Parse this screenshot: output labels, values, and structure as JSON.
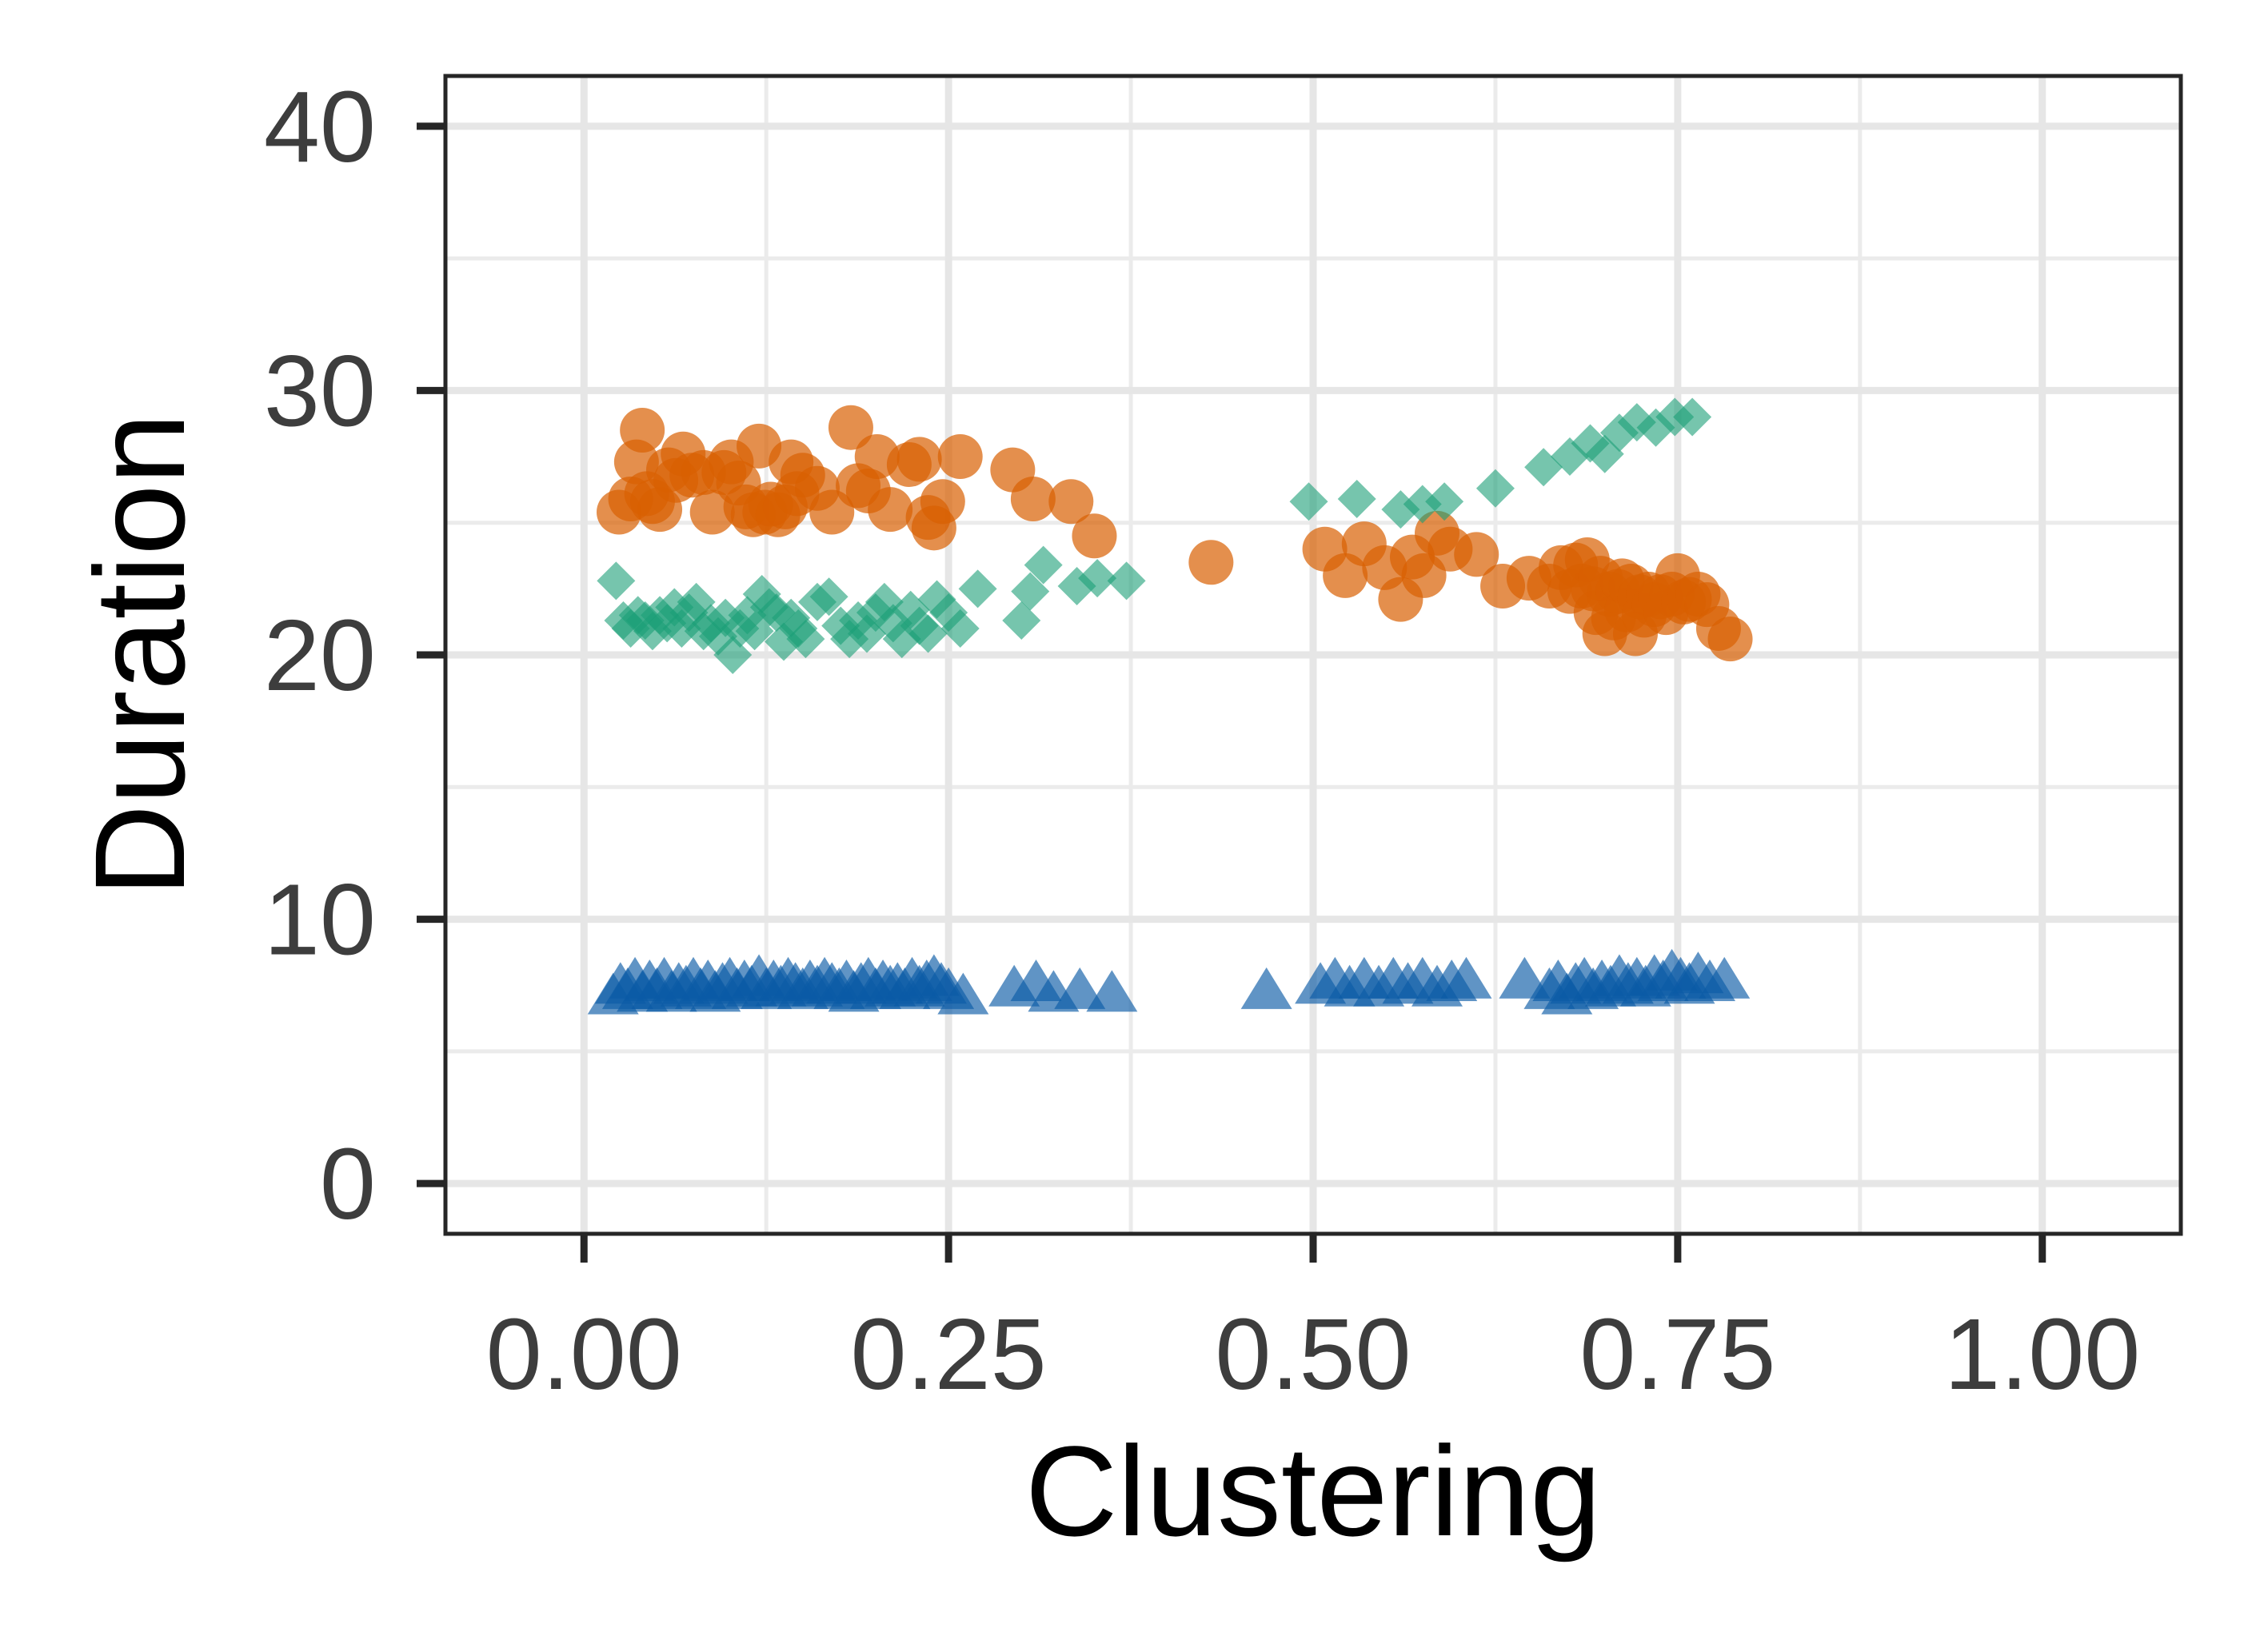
{
  "chart_data": {
    "type": "scatter",
    "xlabel": "Clustering",
    "ylabel": "Duration",
    "xlim": [
      -0.095,
      1.095
    ],
    "ylim": [
      -1.9,
      41.9
    ],
    "x_ticks": [
      "0.00",
      "0.25",
      "0.50",
      "0.75",
      "1.00"
    ],
    "y_ticks": [
      "0",
      "10",
      "20",
      "30",
      "40"
    ],
    "grid": true,
    "legend": "none",
    "series": [
      {
        "color": "#D95F02",
        "marker": "circle",
        "points": [
          [
            0.024,
            25.4
          ],
          [
            0.032,
            25.9
          ],
          [
            0.036,
            27.3
          ],
          [
            0.04,
            28.5
          ],
          [
            0.043,
            26.1
          ],
          [
            0.047,
            25.8
          ],
          [
            0.052,
            25.5
          ],
          [
            0.058,
            27.0
          ],
          [
            0.063,
            26.6
          ],
          [
            0.068,
            27.6
          ],
          [
            0.074,
            26.8
          ],
          [
            0.082,
            26.9
          ],
          [
            0.088,
            25.4
          ],
          [
            0.096,
            26.9
          ],
          [
            0.101,
            27.3
          ],
          [
            0.106,
            26.5
          ],
          [
            0.111,
            25.6
          ],
          [
            0.116,
            25.3
          ],
          [
            0.12,
            27.9
          ],
          [
            0.124,
            25.4
          ],
          [
            0.128,
            25.7
          ],
          [
            0.133,
            25.3
          ],
          [
            0.138,
            25.6
          ],
          [
            0.142,
            27.3
          ],
          [
            0.146,
            26.1
          ],
          [
            0.15,
            26.8
          ],
          [
            0.16,
            26.3
          ],
          [
            0.17,
            25.4
          ],
          [
            0.183,
            28.6
          ],
          [
            0.188,
            26.4
          ],
          [
            0.195,
            26.2
          ],
          [
            0.201,
            27.5
          ],
          [
            0.21,
            25.5
          ],
          [
            0.223,
            27.2
          ],
          [
            0.23,
            27.4
          ],
          [
            0.236,
            25.2
          ],
          [
            0.24,
            24.8
          ],
          [
            0.246,
            25.8
          ],
          [
            0.258,
            27.5
          ],
          [
            0.294,
            27.0
          ],
          [
            0.308,
            25.9
          ],
          [
            0.334,
            25.8
          ],
          [
            0.35,
            24.5
          ],
          [
            0.43,
            23.5
          ],
          [
            0.508,
            24.0
          ],
          [
            0.522,
            23.0
          ],
          [
            0.535,
            24.2
          ],
          [
            0.549,
            23.3
          ],
          [
            0.56,
            22.1
          ],
          [
            0.568,
            23.7
          ],
          [
            0.576,
            23.0
          ],
          [
            0.585,
            24.6
          ],
          [
            0.594,
            24.0
          ],
          [
            0.612,
            23.8
          ],
          [
            0.63,
            22.6
          ],
          [
            0.648,
            22.9
          ],
          [
            0.662,
            22.6
          ],
          [
            0.67,
            23.3
          ],
          [
            0.676,
            22.4
          ],
          [
            0.68,
            23.4
          ],
          [
            0.684,
            22.6
          ],
          [
            0.688,
            23.6
          ],
          [
            0.692,
            22.5
          ],
          [
            0.694,
            21.6
          ],
          [
            0.697,
            22.9
          ],
          [
            0.7,
            20.8
          ],
          [
            0.703,
            22.3
          ],
          [
            0.706,
            21.4
          ],
          [
            0.709,
            22.4
          ],
          [
            0.712,
            22.8
          ],
          [
            0.715,
            21.7
          ],
          [
            0.718,
            22.6
          ],
          [
            0.721,
            20.8
          ],
          [
            0.724,
            22.2
          ],
          [
            0.727,
            21.5
          ],
          [
            0.73,
            22.3
          ],
          [
            0.734,
            21.9
          ],
          [
            0.738,
            22.2
          ],
          [
            0.742,
            21.6
          ],
          [
            0.746,
            22.3
          ],
          [
            0.75,
            23.0
          ],
          [
            0.754,
            22.0
          ],
          [
            0.758,
            22.1
          ],
          [
            0.764,
            22.3
          ],
          [
            0.77,
            21.9
          ],
          [
            0.778,
            21.0
          ],
          [
            0.786,
            20.6
          ]
        ]
      },
      {
        "color": "#1B9E77",
        "marker": "diamond",
        "points": [
          [
            0.022,
            22.8
          ],
          [
            0.027,
            21.3
          ],
          [
            0.032,
            21.0
          ],
          [
            0.037,
            21.5
          ],
          [
            0.042,
            21.3
          ],
          [
            0.047,
            20.9
          ],
          [
            0.052,
            21.5
          ],
          [
            0.057,
            21.2
          ],
          [
            0.062,
            21.8
          ],
          [
            0.067,
            21.0
          ],
          [
            0.072,
            21.6
          ],
          [
            0.077,
            22.0
          ],
          [
            0.082,
            20.9
          ],
          [
            0.087,
            21.2
          ],
          [
            0.092,
            20.7
          ],
          [
            0.097,
            21.4
          ],
          [
            0.102,
            20.0
          ],
          [
            0.107,
            21.0
          ],
          [
            0.112,
            21.5
          ],
          [
            0.117,
            20.9
          ],
          [
            0.122,
            22.3
          ],
          [
            0.127,
            21.8
          ],
          [
            0.132,
            21.6
          ],
          [
            0.137,
            20.5
          ],
          [
            0.142,
            21.4
          ],
          [
            0.147,
            21.0
          ],
          [
            0.152,
            20.6
          ],
          [
            0.16,
            22.0
          ],
          [
            0.168,
            22.2
          ],
          [
            0.176,
            21.1
          ],
          [
            0.182,
            20.6
          ],
          [
            0.188,
            21.3
          ],
          [
            0.194,
            20.8
          ],
          [
            0.2,
            21.6
          ],
          [
            0.206,
            22.0
          ],
          [
            0.212,
            21.2
          ],
          [
            0.218,
            20.6
          ],
          [
            0.224,
            21.7
          ],
          [
            0.23,
            21.1
          ],
          [
            0.236,
            20.8
          ],
          [
            0.242,
            22.1
          ],
          [
            0.25,
            21.6
          ],
          [
            0.258,
            21.0
          ],
          [
            0.27,
            22.5
          ],
          [
            0.3,
            21.3
          ],
          [
            0.306,
            22.4
          ],
          [
            0.315,
            23.4
          ],
          [
            0.338,
            22.6
          ],
          [
            0.352,
            22.9
          ],
          [
            0.372,
            22.8
          ],
          [
            0.497,
            25.8
          ],
          [
            0.53,
            25.9
          ],
          [
            0.56,
            25.5
          ],
          [
            0.575,
            25.7
          ],
          [
            0.59,
            25.8
          ],
          [
            0.625,
            26.3
          ],
          [
            0.658,
            27.1
          ],
          [
            0.676,
            27.5
          ],
          [
            0.69,
            28.0
          ],
          [
            0.7,
            27.6
          ],
          [
            0.71,
            28.4
          ],
          [
            0.722,
            28.8
          ],
          [
            0.735,
            28.6
          ],
          [
            0.748,
            29.0
          ],
          [
            0.76,
            29.0
          ]
        ]
      },
      {
        "color": "#0A5BA6",
        "marker": "triangle",
        "points": [
          [
            0.02,
            7.0
          ],
          [
            0.025,
            7.4
          ],
          [
            0.03,
            7.2
          ],
          [
            0.035,
            7.6
          ],
          [
            0.04,
            7.1
          ],
          [
            0.045,
            7.5
          ],
          [
            0.05,
            7.2
          ],
          [
            0.055,
            7.6
          ],
          [
            0.06,
            7.1
          ],
          [
            0.065,
            7.4
          ],
          [
            0.07,
            7.3
          ],
          [
            0.075,
            7.6
          ],
          [
            0.08,
            7.2
          ],
          [
            0.085,
            7.5
          ],
          [
            0.09,
            7.1
          ],
          [
            0.095,
            7.4
          ],
          [
            0.1,
            7.6
          ],
          [
            0.105,
            7.2
          ],
          [
            0.11,
            7.5
          ],
          [
            0.115,
            7.3
          ],
          [
            0.12,
            7.7
          ],
          [
            0.125,
            7.2
          ],
          [
            0.13,
            7.5
          ],
          [
            0.135,
            7.3
          ],
          [
            0.14,
            7.6
          ],
          [
            0.145,
            7.4
          ],
          [
            0.15,
            7.2
          ],
          [
            0.155,
            7.5
          ],
          [
            0.16,
            7.3
          ],
          [
            0.165,
            7.6
          ],
          [
            0.17,
            7.4
          ],
          [
            0.175,
            7.2
          ],
          [
            0.18,
            7.5
          ],
          [
            0.185,
            7.1
          ],
          [
            0.19,
            7.4
          ],
          [
            0.195,
            7.6
          ],
          [
            0.2,
            7.2
          ],
          [
            0.205,
            7.5
          ],
          [
            0.21,
            7.3
          ],
          [
            0.215,
            7.4
          ],
          [
            0.22,
            7.2
          ],
          [
            0.225,
            7.6
          ],
          [
            0.23,
            7.3
          ],
          [
            0.235,
            7.5
          ],
          [
            0.24,
            7.7
          ],
          [
            0.245,
            7.4
          ],
          [
            0.25,
            7.2
          ],
          [
            0.26,
            7.0
          ],
          [
            0.295,
            7.3
          ],
          [
            0.31,
            7.5
          ],
          [
            0.322,
            7.1
          ],
          [
            0.34,
            7.2
          ],
          [
            0.362,
            7.1
          ],
          [
            0.468,
            7.2
          ],
          [
            0.505,
            7.4
          ],
          [
            0.515,
            7.6
          ],
          [
            0.525,
            7.3
          ],
          [
            0.535,
            7.6
          ],
          [
            0.545,
            7.3
          ],
          [
            0.555,
            7.6
          ],
          [
            0.565,
            7.4
          ],
          [
            0.575,
            7.6
          ],
          [
            0.585,
            7.3
          ],
          [
            0.595,
            7.5
          ],
          [
            0.605,
            7.6
          ],
          [
            0.645,
            7.6
          ],
          [
            0.662,
            7.2
          ],
          [
            0.668,
            7.5
          ],
          [
            0.674,
            7.0
          ],
          [
            0.68,
            7.4
          ],
          [
            0.686,
            7.6
          ],
          [
            0.692,
            7.2
          ],
          [
            0.698,
            7.5
          ],
          [
            0.704,
            7.3
          ],
          [
            0.71,
            7.7
          ],
          [
            0.716,
            7.4
          ],
          [
            0.722,
            7.6
          ],
          [
            0.728,
            7.3
          ],
          [
            0.734,
            7.7
          ],
          [
            0.74,
            7.5
          ],
          [
            0.746,
            7.9
          ],
          [
            0.752,
            7.6
          ],
          [
            0.758,
            7.4
          ],
          [
            0.764,
            7.8
          ],
          [
            0.772,
            7.5
          ],
          [
            0.782,
            7.6
          ]
        ]
      }
    ]
  }
}
